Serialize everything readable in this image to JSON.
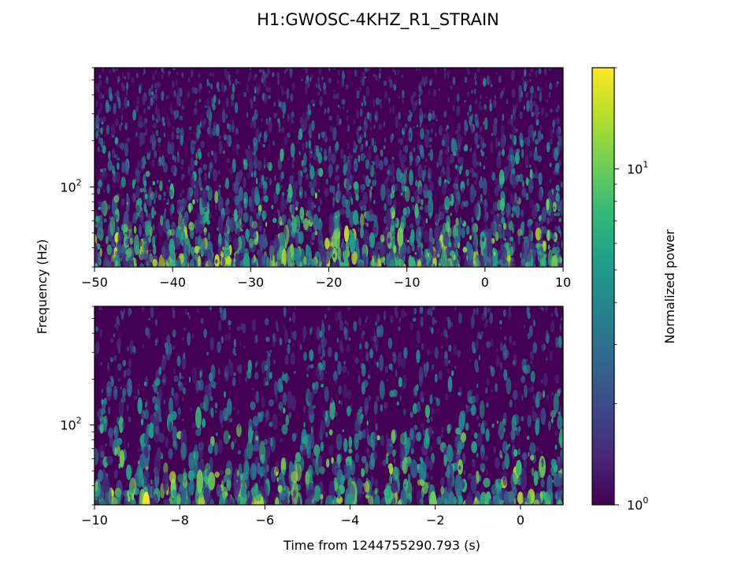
{
  "chart_data": {
    "type": "heatmap",
    "title": "H1:GWOSC-4KHZ_R1_STRAIN",
    "ylabel": "Frequency (Hz)",
    "xlabel": "Time from 1244755290.793 (s)",
    "colorbar": {
      "label": "Normalized power",
      "scale": "log",
      "range": [
        1,
        20
      ],
      "ticks": [
        {
          "value": 1,
          "base": "10",
          "exp": "0"
        },
        {
          "value": 10,
          "base": "10",
          "exp": "1"
        }
      ],
      "colormap": "viridis",
      "colors": [
        "#440154",
        "#482878",
        "#3e4989",
        "#31688e",
        "#26828e",
        "#1f9e89",
        "#35b779",
        "#6ece58",
        "#b5de2b",
        "#fde725"
      ]
    },
    "y_scale": "log",
    "y_range_hz": [
      30,
      600
    ],
    "panels": [
      {
        "name": "overview",
        "xlim": [
          -50,
          10
        ],
        "xticks": [
          "−50",
          "−40",
          "−30",
          "−20",
          "−10",
          "0",
          "10"
        ],
        "ytick": {
          "value": 100,
          "base": "10",
          "exp": "2"
        }
      },
      {
        "name": "zoom",
        "xlim": [
          -10,
          1
        ],
        "xticks": [
          "−10",
          "−8",
          "−6",
          "−4",
          "−2",
          "0"
        ],
        "ytick": {
          "value": 100,
          "base": "10",
          "exp": "2"
        }
      }
    ]
  }
}
